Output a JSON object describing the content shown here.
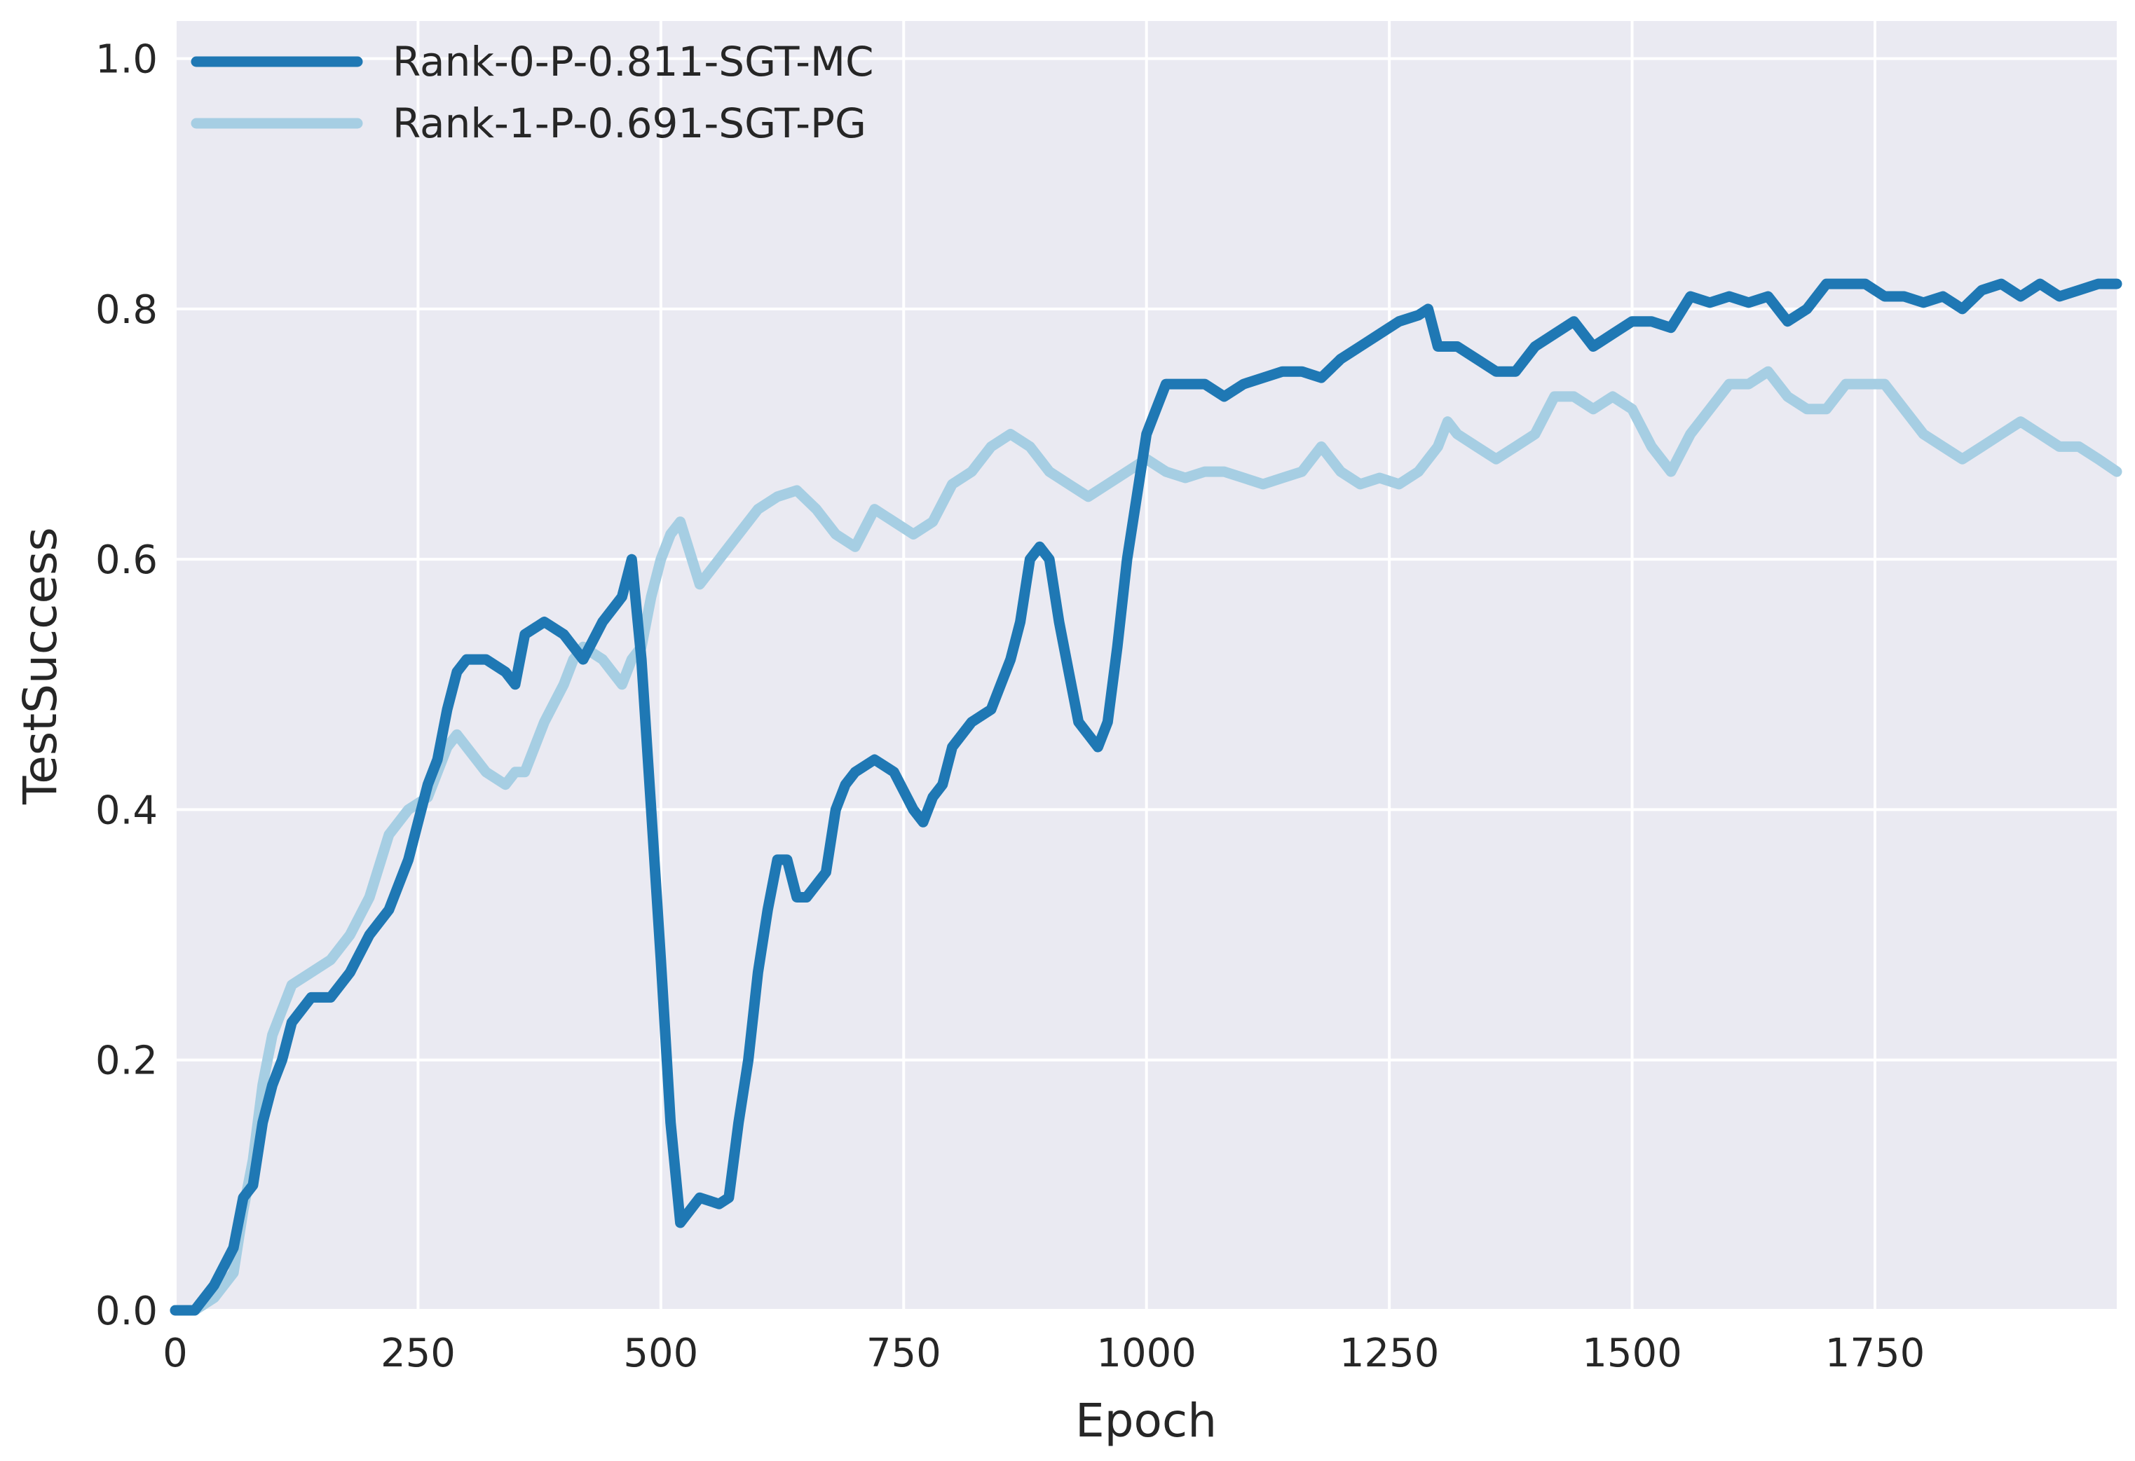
{
  "chart_data": {
    "type": "line",
    "xlabel": "Epoch",
    "ylabel": "TestSuccess",
    "xlim": [
      0,
      1999
    ],
    "ylim": [
      0.0,
      1.03
    ],
    "x_ticks": [
      0,
      250,
      500,
      750,
      1000,
      1250,
      1500,
      1750
    ],
    "y_ticks": [
      0.0,
      0.2,
      0.4,
      0.6,
      0.8,
      1.0
    ],
    "x_tick_labels": [
      "0",
      "250",
      "500",
      "750",
      "1000",
      "1250",
      "1500",
      "1750"
    ],
    "y_tick_labels": [
      "0.0",
      "0.2",
      "0.4",
      "0.6",
      "0.8",
      "1.0"
    ],
    "grid": true,
    "legend_position": "upper-left",
    "colors": {
      "background": "#eaeaf2",
      "grid": "#ffffff",
      "text": "#262626"
    },
    "series": [
      {
        "name": "Rank-0-P-0.811-SGT-MC",
        "color": "#1f78b4",
        "x": [
          0,
          20,
          40,
          60,
          70,
          80,
          90,
          100,
          110,
          120,
          140,
          160,
          180,
          200,
          220,
          240,
          260,
          270,
          280,
          290,
          300,
          320,
          340,
          350,
          360,
          380,
          400,
          410,
          420,
          440,
          460,
          470,
          480,
          490,
          500,
          510,
          520,
          540,
          560,
          570,
          580,
          590,
          600,
          610,
          620,
          630,
          640,
          650,
          660,
          670,
          680,
          690,
          700,
          720,
          740,
          760,
          770,
          780,
          790,
          800,
          820,
          840,
          860,
          870,
          880,
          890,
          900,
          910,
          920,
          930,
          940,
          950,
          960,
          970,
          980,
          1000,
          1010,
          1020,
          1040,
          1060,
          1080,
          1100,
          1120,
          1140,
          1160,
          1180,
          1200,
          1220,
          1240,
          1260,
          1280,
          1290,
          1300,
          1320,
          1340,
          1360,
          1380,
          1400,
          1420,
          1440,
          1460,
          1480,
          1500,
          1520,
          1540,
          1560,
          1580,
          1600,
          1620,
          1640,
          1660,
          1680,
          1700,
          1720,
          1740,
          1760,
          1780,
          1800,
          1820,
          1840,
          1860,
          1880,
          1900,
          1920,
          1940,
          1960,
          1980,
          1999
        ],
        "y": [
          0.0,
          0.0,
          0.02,
          0.05,
          0.09,
          0.1,
          0.15,
          0.18,
          0.2,
          0.23,
          0.25,
          0.25,
          0.27,
          0.3,
          0.32,
          0.36,
          0.42,
          0.44,
          0.48,
          0.51,
          0.52,
          0.52,
          0.51,
          0.5,
          0.54,
          0.55,
          0.54,
          0.53,
          0.52,
          0.55,
          0.57,
          0.6,
          0.52,
          0.4,
          0.28,
          0.15,
          0.07,
          0.09,
          0.085,
          0.09,
          0.15,
          0.2,
          0.27,
          0.32,
          0.36,
          0.36,
          0.33,
          0.33,
          0.34,
          0.35,
          0.4,
          0.42,
          0.43,
          0.44,
          0.43,
          0.4,
          0.39,
          0.41,
          0.42,
          0.45,
          0.47,
          0.48,
          0.52,
          0.55,
          0.6,
          0.61,
          0.6,
          0.55,
          0.51,
          0.47,
          0.46,
          0.45,
          0.47,
          0.53,
          0.6,
          0.7,
          0.72,
          0.74,
          0.74,
          0.74,
          0.73,
          0.74,
          0.745,
          0.75,
          0.75,
          0.745,
          0.76,
          0.77,
          0.78,
          0.79,
          0.795,
          0.8,
          0.77,
          0.77,
          0.76,
          0.75,
          0.75,
          0.77,
          0.78,
          0.79,
          0.77,
          0.78,
          0.79,
          0.79,
          0.785,
          0.81,
          0.805,
          0.81,
          0.805,
          0.81,
          0.79,
          0.8,
          0.82,
          0.82,
          0.82,
          0.81,
          0.81,
          0.805,
          0.81,
          0.8,
          0.815,
          0.82,
          0.81,
          0.82,
          0.81,
          0.815,
          0.82,
          0.82
        ]
      },
      {
        "name": "Rank-1-P-0.691-SGT-PG",
        "color": "#a6cee3",
        "x": [
          0,
          20,
          40,
          60,
          70,
          80,
          90,
          100,
          110,
          120,
          140,
          160,
          180,
          200,
          220,
          240,
          260,
          280,
          290,
          300,
          320,
          340,
          350,
          360,
          380,
          400,
          410,
          420,
          440,
          460,
          470,
          480,
          490,
          500,
          510,
          520,
          540,
          560,
          570,
          580,
          600,
          620,
          640,
          660,
          680,
          700,
          720,
          740,
          760,
          780,
          800,
          820,
          840,
          860,
          880,
          890,
          900,
          920,
          940,
          960,
          980,
          1000,
          1020,
          1040,
          1060,
          1080,
          1100,
          1120,
          1140,
          1160,
          1180,
          1200,
          1220,
          1240,
          1260,
          1280,
          1300,
          1310,
          1320,
          1340,
          1360,
          1380,
          1400,
          1420,
          1440,
          1460,
          1480,
          1500,
          1520,
          1540,
          1560,
          1580,
          1600,
          1620,
          1640,
          1660,
          1680,
          1700,
          1720,
          1740,
          1760,
          1780,
          1800,
          1820,
          1840,
          1860,
          1880,
          1900,
          1920,
          1940,
          1960,
          1980,
          1999
        ],
        "y": [
          0.0,
          0.0,
          0.01,
          0.03,
          0.08,
          0.12,
          0.18,
          0.22,
          0.24,
          0.26,
          0.27,
          0.28,
          0.3,
          0.33,
          0.38,
          0.4,
          0.41,
          0.45,
          0.46,
          0.45,
          0.43,
          0.42,
          0.43,
          0.43,
          0.47,
          0.5,
          0.52,
          0.53,
          0.52,
          0.5,
          0.52,
          0.53,
          0.57,
          0.6,
          0.62,
          0.63,
          0.58,
          0.6,
          0.61,
          0.62,
          0.64,
          0.65,
          0.655,
          0.64,
          0.62,
          0.61,
          0.64,
          0.63,
          0.62,
          0.63,
          0.66,
          0.67,
          0.69,
          0.7,
          0.69,
          0.68,
          0.67,
          0.66,
          0.65,
          0.66,
          0.67,
          0.68,
          0.67,
          0.665,
          0.67,
          0.67,
          0.665,
          0.66,
          0.665,
          0.67,
          0.69,
          0.67,
          0.66,
          0.665,
          0.66,
          0.67,
          0.69,
          0.71,
          0.7,
          0.69,
          0.68,
          0.69,
          0.7,
          0.73,
          0.73,
          0.72,
          0.73,
          0.72,
          0.69,
          0.67,
          0.7,
          0.72,
          0.74,
          0.74,
          0.75,
          0.73,
          0.72,
          0.72,
          0.74,
          0.74,
          0.74,
          0.72,
          0.7,
          0.69,
          0.68,
          0.69,
          0.7,
          0.71,
          0.7,
          0.69,
          0.69,
          0.68,
          0.67
        ]
      }
    ]
  }
}
